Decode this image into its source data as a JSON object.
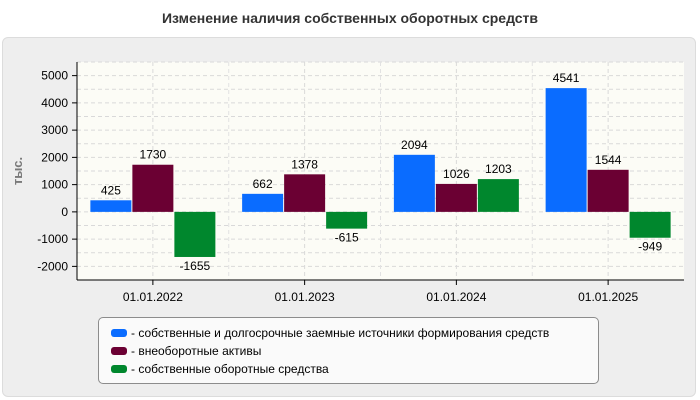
{
  "chart_data": {
    "type": "bar",
    "title": "Изменение наличия собственных оборотных средств",
    "ylabel": "тыс.",
    "xlabel": "",
    "categories": [
      "01.01.2022",
      "01.01.2023",
      "01.01.2024",
      "01.01.2025"
    ],
    "ylim": [
      -2500,
      5500
    ],
    "yticks": [
      -2000,
      -1000,
      0,
      1000,
      2000,
      3000,
      4000,
      5000
    ],
    "grid": true,
    "legend_position": "bottom",
    "series": [
      {
        "name": "- собственные и долгосрочные заемные источники формирования средств",
        "color": "#0a6cff",
        "values": [
          425,
          662,
          2094,
          4541
        ]
      },
      {
        "name": "- внеоборотные активы",
        "color": "#6b0033",
        "values": [
          1730,
          1378,
          1026,
          1544
        ]
      },
      {
        "name": "- собственные оборотные средства",
        "color": "#00872d",
        "values": [
          -1655,
          -615,
          1203,
          -949
        ]
      }
    ]
  }
}
